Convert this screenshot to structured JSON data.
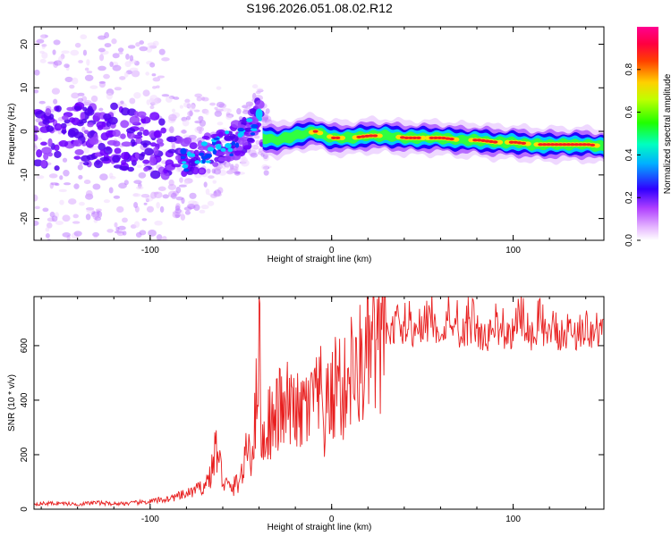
{
  "title": "S196.2026.051.08.02.R12",
  "chart_data": [
    {
      "type": "heatmap",
      "name": "spectrogram",
      "xlabel": "Height of straight line (km)",
      "ylabel": "Frequency (Hz)",
      "xlim": [
        -164,
        150
      ],
      "ylim": [
        -25,
        24
      ],
      "xticks": [
        -100,
        0,
        100
      ],
      "xtick_labels": [
        "-100",
        "0",
        "100"
      ],
      "yticks": [
        -20,
        -10,
        0,
        10,
        20
      ],
      "ytick_labels": [
        "-20",
        "-10",
        "0",
        "10",
        "20"
      ],
      "ridge": {
        "x": [
          -164,
          -140,
          -120,
          -100,
          -90,
          -80,
          -70,
          -60,
          -50,
          -45,
          -40,
          -38,
          -30,
          -20,
          -10,
          0,
          10,
          20,
          30,
          40,
          50,
          60,
          70,
          80,
          90,
          100,
          110,
          120,
          130,
          140,
          150
        ],
        "y": [
          -2,
          -1,
          -1,
          -3,
          -5,
          -6,
          -5,
          -3,
          -2,
          1,
          4,
          -1.5,
          -2,
          -1,
          0,
          -1.5,
          -1.5,
          -1,
          -1,
          -1.5,
          -1.5,
          -1.5,
          -2,
          -2,
          -2.5,
          -2.5,
          -3,
          -3,
          -3,
          -3,
          -3.5
        ]
      },
      "colorbar": {
        "label": "Normalized spectral amplitude",
        "range": [
          0,
          1
        ],
        "ticks": [
          0,
          0.2,
          0.4,
          0.6,
          0.8
        ],
        "tick_labels": [
          "0.0",
          "0.2",
          "0.4",
          "0.6",
          "0.8"
        ],
        "colormap": [
          "#ffffff",
          "#d070ff",
          "#7000ff",
          "#0000ff",
          "#00e0ff",
          "#00ff40",
          "#ffff00",
          "#ff8000",
          "#ff0000",
          "#ff0080"
        ]
      }
    },
    {
      "type": "line",
      "name": "snr",
      "xlabel": "Height of straight line (km)",
      "ylabel": "SNR (10 * v/v)",
      "xlim": [
        -164,
        150
      ],
      "ylim": [
        0,
        780
      ],
      "xticks": [
        -100,
        0,
        100
      ],
      "xtick_labels": [
        "-100",
        "0",
        "100"
      ],
      "yticks": [
        0,
        200,
        400,
        600
      ],
      "ytick_labels": [
        "0",
        "200",
        "400",
        "600"
      ],
      "color": "#e82020",
      "series": [
        {
          "name": "SNR",
          "x": [
            -164,
            -150,
            -140,
            -130,
            -120,
            -110,
            -100,
            -90,
            -80,
            -75,
            -70,
            -66,
            -64,
            -62,
            -60,
            -58,
            -56,
            -54,
            -52,
            -50,
            -48,
            -46,
            -44,
            -42,
            -40,
            -39,
            -38,
            -36,
            -34,
            -32,
            -30,
            -28,
            -26,
            -24,
            -22,
            -20,
            -18,
            -16,
            -14,
            -12,
            -10,
            -8,
            -6,
            -4,
            -2,
            0,
            2,
            4,
            6,
            8,
            10,
            12,
            14,
            16,
            18,
            20,
            22,
            25,
            28,
            32,
            36,
            40,
            45,
            50,
            55,
            60,
            65,
            70,
            75,
            80,
            85,
            90,
            95,
            100,
            105,
            110,
            115,
            120,
            125,
            130,
            135,
            140,
            145,
            150
          ],
          "y": [
            20,
            22,
            18,
            24,
            20,
            22,
            28,
            38,
            55,
            70,
            85,
            140,
            230,
            180,
            110,
            90,
            75,
            80,
            100,
            120,
            160,
            250,
            200,
            330,
            700,
            300,
            240,
            280,
            340,
            300,
            350,
            380,
            320,
            400,
            330,
            420,
            300,
            360,
            390,
            330,
            460,
            370,
            420,
            300,
            400,
            390,
            460,
            500,
            380,
            480,
            500,
            540,
            430,
            560,
            500,
            560,
            600,
            560,
            650,
            640,
            680,
            660,
            650,
            660,
            680,
            650,
            700,
            640,
            660,
            650,
            620,
            680,
            630,
            650,
            660,
            640,
            650,
            660,
            630,
            650,
            640,
            660,
            640,
            650
          ]
        }
      ]
    }
  ]
}
